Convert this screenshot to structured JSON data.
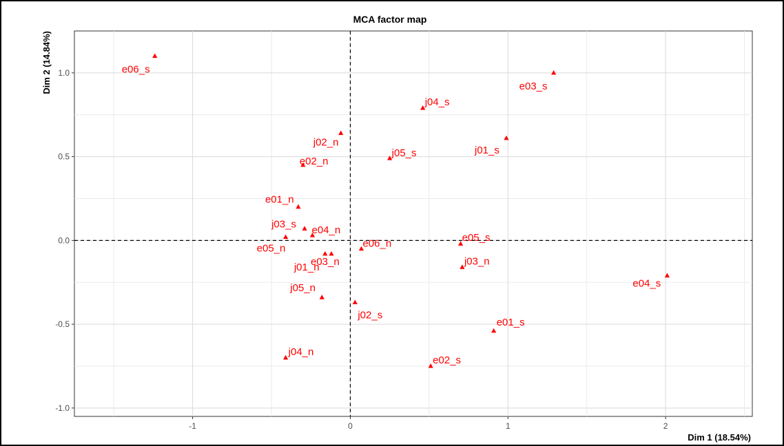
{
  "chart_data": {
    "type": "scatter",
    "title": "MCA factor map",
    "xlabel": "Dim 1 (18.54%)",
    "ylabel": "Dim 2 (14.84%)",
    "xlim": [
      -1.75,
      2.55
    ],
    "ylim": [
      -1.05,
      1.25
    ],
    "xticks": [
      -1,
      0,
      1,
      2
    ],
    "xtick_labels": [
      "-1",
      "0",
      "1",
      "2"
    ],
    "yticks": [
      -1.0,
      -0.5,
      0.0,
      0.5,
      1.0
    ],
    "ytick_labels": [
      "-1.0",
      "-0.5",
      "0.0",
      "0.5",
      "1.0"
    ],
    "grid": true,
    "reference_lines": {
      "x": 0,
      "y": 0,
      "style": "dashed"
    },
    "marker": "triangle",
    "color": "#ff0000",
    "points": [
      {
        "label": "e06_s",
        "x": -1.24,
        "y": 1.1
      },
      {
        "label": "e03_s",
        "x": 1.29,
        "y": 1.0
      },
      {
        "label": "j04_s",
        "x": 0.46,
        "y": 0.79
      },
      {
        "label": "j02_n",
        "x": -0.06,
        "y": 0.64
      },
      {
        "label": "j01_s",
        "x": 0.99,
        "y": 0.61
      },
      {
        "label": "j05_s",
        "x": 0.25,
        "y": 0.49
      },
      {
        "label": "e02_n",
        "x": -0.3,
        "y": 0.45
      },
      {
        "label": "e01_n",
        "x": -0.33,
        "y": 0.2
      },
      {
        "label": "j03_s",
        "x": -0.29,
        "y": 0.07
      },
      {
        "label": "e04_n",
        "x": -0.24,
        "y": 0.03
      },
      {
        "label": "e05_n",
        "x": -0.41,
        "y": 0.02
      },
      {
        "label": "e06_n",
        "x": 0.07,
        "y": -0.05
      },
      {
        "label": "e03_n",
        "x": -0.12,
        "y": -0.08
      },
      {
        "label": "j01_n",
        "x": -0.16,
        "y": -0.08
      },
      {
        "label": "e05_s",
        "x": 0.7,
        "y": -0.02
      },
      {
        "label": "j03_n",
        "x": 0.71,
        "y": -0.16
      },
      {
        "label": "e04_s",
        "x": 2.01,
        "y": -0.21
      },
      {
        "label": "j05_n",
        "x": -0.18,
        "y": -0.34
      },
      {
        "label": "j02_s",
        "x": 0.03,
        "y": -0.37
      },
      {
        "label": "e01_s",
        "x": 0.91,
        "y": -0.54
      },
      {
        "label": "j04_n",
        "x": -0.41,
        "y": -0.7
      },
      {
        "label": "e02_s",
        "x": 0.51,
        "y": -0.75
      }
    ]
  }
}
